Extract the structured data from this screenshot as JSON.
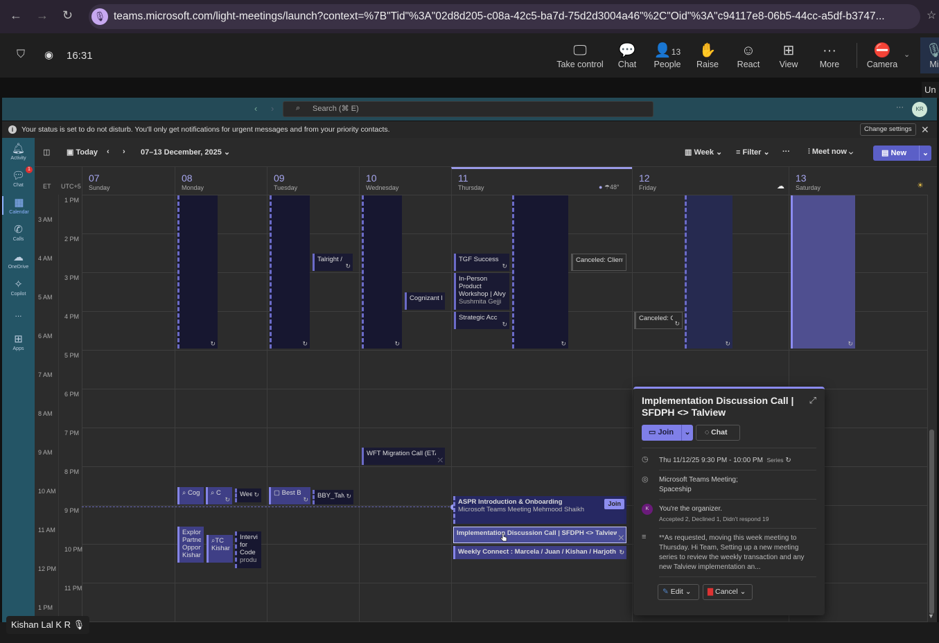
{
  "browser": {
    "url": "teams.microsoft.com/light-meetings/launch?context=%7B\"Tid\"%3A\"02d8d205-c08a-42c5-ba7d-75d2d3004a46\"%2C\"Oid\"%3A\"c94117e8-06b5-44cc-a5df-b3747..."
  },
  "meeting": {
    "time": "16:31",
    "actions": [
      {
        "label": "Take control",
        "icon": "take-control-icon"
      },
      {
        "label": "Chat",
        "icon": "chat-icon"
      },
      {
        "label": "People",
        "icon": "people-icon",
        "count": "13"
      },
      {
        "label": "Raise",
        "icon": "hand-icon"
      },
      {
        "label": "React",
        "icon": "smiley-icon"
      },
      {
        "label": "View",
        "icon": "grid-icon"
      },
      {
        "label": "More",
        "icon": "more-icon"
      },
      {
        "label": "Camera",
        "icon": "camera-off-icon"
      },
      {
        "label": "Mi",
        "icon": "mic-icon"
      }
    ],
    "tooltip": "Un",
    "participant": "Kishan Lal K R"
  },
  "teams": {
    "search_placeholder": "Search (⌘ E)",
    "avatar": "KR",
    "banner": "Your status is set to do not disturb. You'll only get notifications for urgent messages and from your priority contacts.",
    "change_settings": "Change settings"
  },
  "rail": [
    {
      "label": "Activity"
    },
    {
      "label": "Chat",
      "badge": "1"
    },
    {
      "label": "Calendar",
      "selected": true
    },
    {
      "label": "Calls"
    },
    {
      "label": "OneDrive"
    },
    {
      "label": "Copilot"
    },
    {
      "label": "..."
    },
    {
      "label": "Apps"
    }
  ],
  "toolbar": {
    "today": "Today",
    "range": "07–13 December, 2025",
    "view": "Week",
    "filter": "Filter",
    "meet_now": "Meet now",
    "new": "New"
  },
  "calendar": {
    "tz": [
      "ET",
      "UTC+5"
    ],
    "days": [
      {
        "num": "07",
        "name": "Sunday"
      },
      {
        "num": "08",
        "name": "Monday"
      },
      {
        "num": "09",
        "name": "Tuesday"
      },
      {
        "num": "10",
        "name": "Wednesday"
      },
      {
        "num": "11",
        "name": "Thursday",
        "weather": "48°"
      },
      {
        "num": "12",
        "name": "Friday"
      },
      {
        "num": "13",
        "name": "Saturday"
      }
    ],
    "et_times": [
      "3 AM",
      "4 AM",
      "5 AM",
      "6 AM",
      "7 AM",
      "8 AM",
      "9 AM",
      "10 AM",
      "11 AM",
      "12 PM",
      "1 PM"
    ],
    "local_times": [
      "1 PM",
      "2 PM",
      "3 PM",
      "4 PM",
      "5 PM",
      "6 PM",
      "7 PM",
      "8 PM",
      "9 PM",
      "10 PM",
      "11 PM"
    ],
    "events": {
      "talright": "Talright /",
      "cognizant": "Cognizant F",
      "tgf": "TGF Success !",
      "workshop": "In-Person Product Workshop | Alvy",
      "workshop_org": "Sushmita Gejji",
      "strategic": "Strategic Acc",
      "cancel_client": "Canceled: Client",
      "cancel_c": "Canceled: C",
      "wft": "WFT Migration Call (ETA",
      "cog": "Cog",
      "c": "C",
      "wee": "Wee",
      "bestb": "Best B",
      "bby": "BBY_Talv",
      "explori": "Explori Partne Opport",
      "explori_org": "Kishan",
      "tc": "TC",
      "tc_org": "Kishan",
      "intervi": "Intervi for Code",
      "intervi_sub": "produ",
      "aspr": "ASPR Introduction & Onboarding",
      "aspr_sub": "Microsoft Teams Meeting Mehmood Shaikh",
      "join": "Join",
      "impl": "Implementation Discussion Call | SFDPH <> Talview Mic",
      "weekly": "Weekly Connect : Marcela / Juan / Kishan / Harjoth Micr"
    }
  },
  "popup": {
    "title": "Implementation Discussion Call | SFDPH <> Talview",
    "join": "Join",
    "chat": "Chat",
    "when": "Thu 11/12/25 9:30 PM - 10:00 PM",
    "series": "Series",
    "location1": "Microsoft Teams Meeting;",
    "location2": "Spaceship",
    "organizer": "You're the organizer.",
    "responses": "Accepted 2, Declined 1, Didn't respond 19",
    "description": "**As requested, moving this week meeting to Thursday. Hi Team, Setting up a new meeting series to review the weekly transaction and any new Talview implementation an...",
    "edit": "Edit",
    "cancel": "Cancel"
  },
  "colors": {
    "accent": "#7f7fe0",
    "rail": "#245566",
    "header": "#244a57"
  }
}
